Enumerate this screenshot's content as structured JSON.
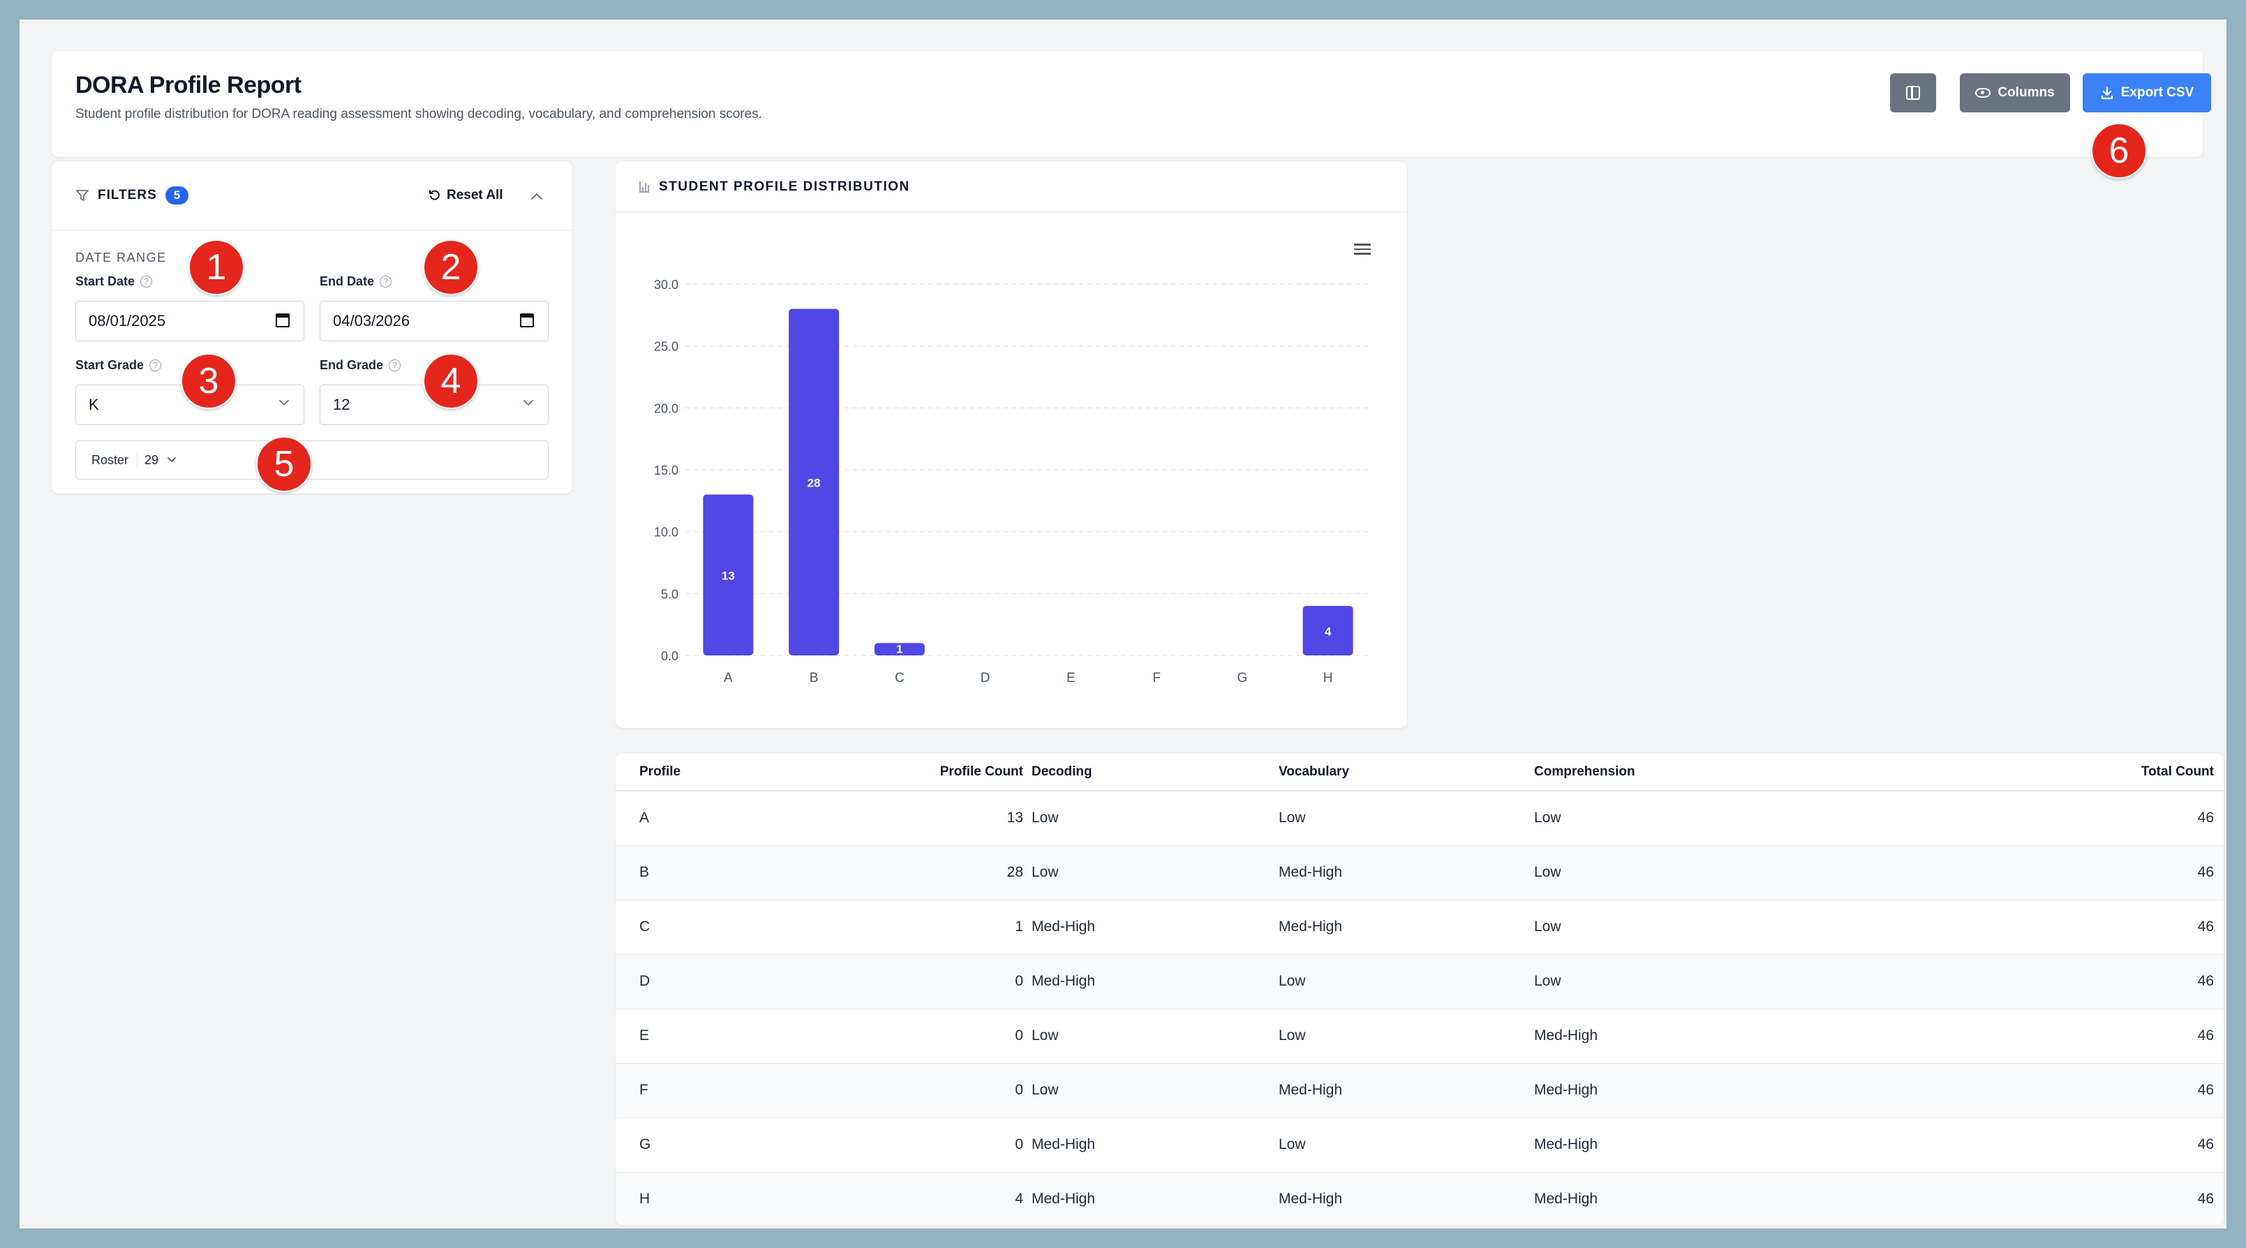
{
  "header": {
    "title": "DORA Profile Report",
    "subtitle": "Student profile distribution for DORA reading assessment showing decoding, vocabulary, and comprehension scores.",
    "columns_label": "Columns",
    "export_label": "Export CSV"
  },
  "filters": {
    "title": "FILTERS",
    "active_count": "5",
    "reset_label": "Reset All",
    "collapse_icon": "chevron-up-icon",
    "section_label": "DATE RANGE",
    "start_date_label": "Start Date",
    "start_date_value": "08/01/2025",
    "end_date_label": "End Date",
    "end_date_value": "04/03/2026",
    "start_grade_label": "Start Grade",
    "start_grade_value": "K",
    "end_grade_label": "End Grade",
    "end_grade_value": "12",
    "roster_label": "Roster",
    "roster_count": "29"
  },
  "chart_card": {
    "title": "STUDENT PROFILE DISTRIBUTION"
  },
  "chart_data": {
    "type": "bar",
    "categories": [
      "A",
      "B",
      "C",
      "D",
      "E",
      "F",
      "G",
      "H"
    ],
    "values": [
      13,
      28,
      1,
      0,
      0,
      0,
      0,
      4
    ],
    "data_labels": [
      "13",
      "28",
      "1",
      "",
      "",
      "",
      "",
      "4"
    ],
    "yticks": [
      "0.0",
      "5.0",
      "10.0",
      "15.0",
      "20.0",
      "25.0",
      "30.0"
    ],
    "ylim": [
      0,
      30
    ],
    "bar_color": "#4f46e5",
    "grid": true,
    "title": "",
    "xlabel": "",
    "ylabel": ""
  },
  "table": {
    "headers": [
      "Profile",
      "Profile Count",
      "Decoding",
      "Vocabulary",
      "Comprehension",
      "Total Count"
    ],
    "rows": [
      [
        "A",
        "13",
        "Low",
        "Low",
        "Low",
        "46"
      ],
      [
        "B",
        "28",
        "Low",
        "Med-High",
        "Low",
        "46"
      ],
      [
        "C",
        "1",
        "Med-High",
        "Med-High",
        "Low",
        "46"
      ],
      [
        "D",
        "0",
        "Med-High",
        "Low",
        "Low",
        "46"
      ],
      [
        "E",
        "0",
        "Low",
        "Low",
        "Med-High",
        "46"
      ],
      [
        "F",
        "0",
        "Low",
        "Med-High",
        "Med-High",
        "46"
      ],
      [
        "G",
        "0",
        "Med-High",
        "Low",
        "Med-High",
        "46"
      ],
      [
        "H",
        "4",
        "Med-High",
        "Med-High",
        "Med-High",
        "46"
      ]
    ]
  },
  "markers": [
    "1",
    "2",
    "3",
    "4",
    "5",
    "6"
  ],
  "colors": {
    "accent": "#3b82f6",
    "badge": "#2563eb",
    "marker": "#e5261d",
    "background": "#93b3c2"
  }
}
